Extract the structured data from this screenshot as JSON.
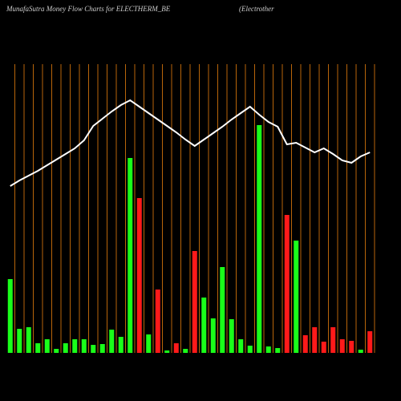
{
  "chart_data": {
    "type": "bar",
    "title": "MunafaSutra  Money Flow  Charts for ELECTHERM_BE",
    "subtitle": "(Electrother",
    "categories": [
      null,
      null,
      null,
      null,
      null,
      null,
      null,
      null,
      null,
      null,
      null,
      null,
      null,
      null,
      null,
      null,
      null,
      null,
      null,
      null,
      null,
      null,
      null,
      null,
      null,
      null,
      null,
      null,
      null,
      null,
      null,
      null,
      null,
      null,
      null,
      null,
      null,
      null,
      null,
      null
    ],
    "ylim": [
      0,
      360
    ],
    "grid": true,
    "grid_color": "#b8650a",
    "series": [
      {
        "type": "bar",
        "values": [
          92,
          30,
          32,
          12,
          17,
          5,
          12,
          17,
          17,
          10,
          11,
          29,
          20,
          243,
          193,
          23,
          79,
          3,
          12,
          5,
          127,
          69,
          43,
          107,
          42,
          17,
          9,
          284,
          8,
          6,
          172,
          140,
          22,
          32,
          14,
          32,
          17,
          15,
          4,
          27
        ],
        "colors": [
          "#1aff1a",
          "#1aff1a",
          "#1aff1a",
          "#1aff1a",
          "#1aff1a",
          "#1aff1a",
          "#1aff1a",
          "#1aff1a",
          "#1aff1a",
          "#1aff1a",
          "#1aff1a",
          "#1aff1a",
          "#1aff1a",
          "#1aff1a",
          "#ff1a1a",
          "#1aff1a",
          "#ff1a1a",
          "#1aff1a",
          "#ff1a1a",
          "#1aff1a",
          "#ff1a1a",
          "#1aff1a",
          "#1aff1a",
          "#1aff1a",
          "#1aff1a",
          "#1aff1a",
          "#1aff1a",
          "#1aff1a",
          "#1aff1a",
          "#1aff1a",
          "#ff1a1a",
          "#1aff1a",
          "#ff1a1a",
          "#ff1a1a",
          "#ff1a1a",
          "#ff1a1a",
          "#ff1a1a",
          "#ff1a1a",
          "#1aff1a",
          "#ff1a1a"
        ]
      },
      {
        "type": "line",
        "color": "#ffffff",
        "values": [
          208,
          215,
          221,
          227,
          234,
          241,
          248,
          255,
          265,
          283,
          292,
          301,
          309,
          315,
          307,
          299,
          291,
          283,
          275,
          266,
          258,
          266,
          274,
          282,
          291,
          299,
          307,
          297,
          288,
          282,
          260,
          262,
          256,
          250,
          255,
          248,
          240,
          237,
          245,
          250
        ]
      }
    ]
  }
}
